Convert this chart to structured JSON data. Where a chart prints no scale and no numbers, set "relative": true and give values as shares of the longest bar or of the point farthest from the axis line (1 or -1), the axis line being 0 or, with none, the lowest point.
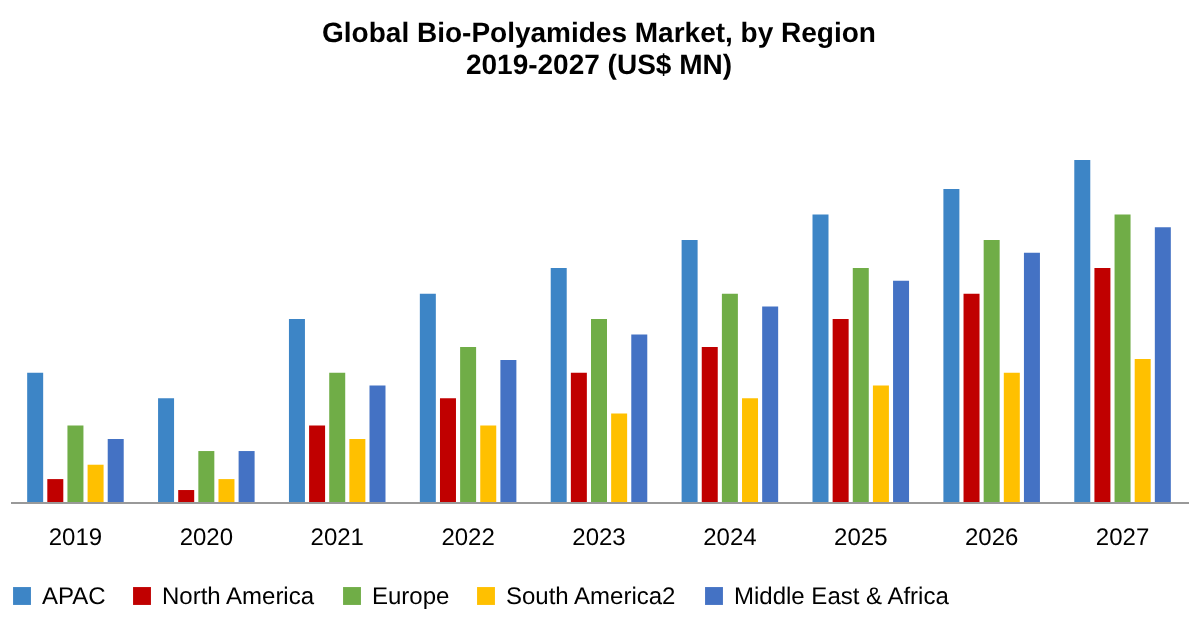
{
  "chart_data": {
    "type": "bar",
    "title": [
      "Global Bio-Polyamides Market, by Region",
      "2019-2027 (US$ MN)"
    ],
    "relative": true,
    "grid": false,
    "legend": "bottom",
    "categories": [
      "2019",
      "2020",
      "2021",
      "2022",
      "2023",
      "2024",
      "2025",
      "2026",
      "2027"
    ],
    "series": [
      {
        "name": "APAC",
        "color": "#3d85c6",
        "values": [
          0.378,
          0.303,
          0.535,
          0.609,
          0.684,
          0.766,
          0.841,
          0.915,
          1
        ]
      },
      {
        "name": "North America",
        "color": "#c00000",
        "values": [
          0.067,
          0.035,
          0.224,
          0.303,
          0.378,
          0.453,
          0.535,
          0.609,
          0.684
        ]
      },
      {
        "name": "Europe",
        "color": "#70ad47",
        "values": [
          0.224,
          0.149,
          0.378,
          0.453,
          0.535,
          0.609,
          0.684,
          0.766,
          0.841
        ]
      },
      {
        "name": "South America2",
        "color": "#ffc000",
        "values": [
          0.109,
          0.067,
          0.184,
          0.224,
          0.259,
          0.303,
          0.341,
          0.378,
          0.418
        ]
      },
      {
        "name": "Middle East & Africa",
        "color": "#4472c4",
        "values": [
          0.184,
          0.149,
          0.341,
          0.415,
          0.49,
          0.572,
          0.647,
          0.729,
          0.803
        ]
      }
    ]
  }
}
